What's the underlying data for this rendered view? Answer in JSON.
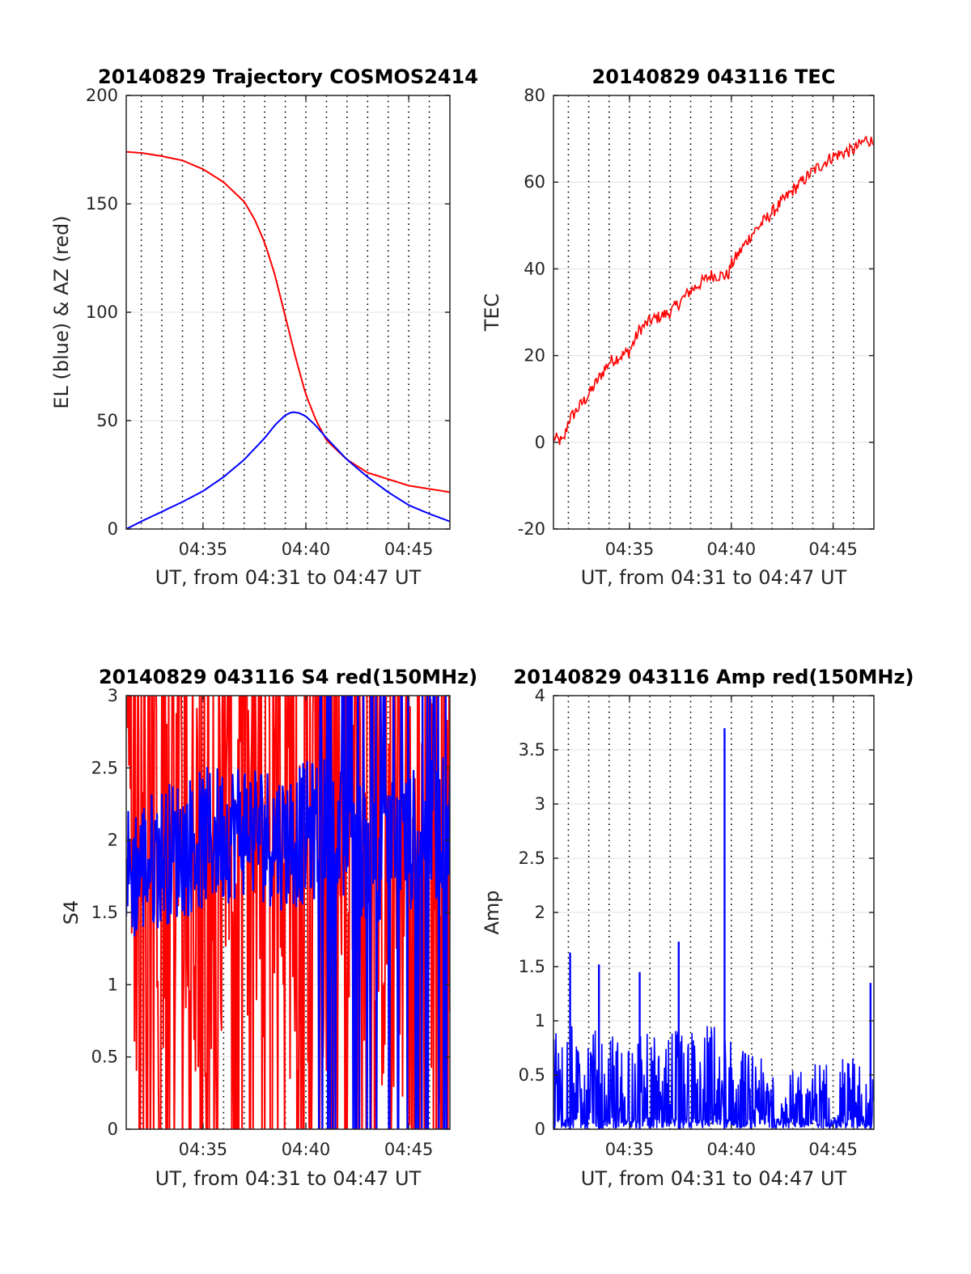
{
  "colors": {
    "el": "#0000ff",
    "az": "#ff0000",
    "axis": "#262626",
    "grid": "#e0e0e0",
    "vline": "#000000"
  },
  "chart_data": [
    {
      "type": "line",
      "title": "20140829 Trajectory COSMOS2414",
      "xlabel": "UT, from 04:31 to 04:47 UT",
      "ylabel": "EL (blue) & AZ (red)",
      "xlim": [
        "04:31:16",
        "04:47:00"
      ],
      "ylim": [
        0,
        200
      ],
      "xticks": [
        "04:35",
        "04:40",
        "04:45"
      ],
      "yticks": [
        0,
        50,
        100,
        150,
        200
      ],
      "grid": true,
      "series": [
        {
          "color": "#ff0000",
          "x": [
            "04:31:16",
            "04:32:00",
            "04:33:00",
            "04:34:00",
            "04:35:00",
            "04:36:00",
            "04:37:00",
            "04:37:30",
            "04:38:00",
            "04:38:30",
            "04:39:00",
            "04:39:30",
            "04:40:00",
            "04:40:30",
            "04:41:00",
            "04:42:00",
            "04:43:00",
            "04:44:00",
            "04:45:00",
            "04:46:00",
            "04:47:00"
          ],
          "y": [
            174,
            173.5,
            172,
            170,
            166,
            160,
            151,
            143,
            132,
            117,
            98,
            79,
            62,
            50,
            41,
            32,
            26,
            23,
            20,
            18.5,
            17
          ]
        },
        {
          "color": "#0000ff",
          "x": [
            "04:31:16",
            "04:32:00",
            "04:33:00",
            "04:34:00",
            "04:35:00",
            "04:36:00",
            "04:37:00",
            "04:38:00",
            "04:38:30",
            "04:39:00",
            "04:39:20",
            "04:39:40",
            "04:40:00",
            "04:40:30",
            "04:41:00",
            "04:42:00",
            "04:43:00",
            "04:44:00",
            "04:45:00",
            "04:46:00",
            "04:47:00"
          ],
          "y": [
            0,
            3.5,
            8,
            12.5,
            17.5,
            24,
            32,
            42,
            48,
            52.5,
            54,
            53.5,
            52,
            47.5,
            42,
            32,
            24,
            17,
            11,
            7,
            3.5
          ]
        }
      ]
    },
    {
      "type": "line",
      "title": "20140829 043116 TEC",
      "xlabel": "UT, from 04:31 to 04:47 UT",
      "ylabel": "TEC",
      "xlim": [
        "04:31:16",
        "04:47:00"
      ],
      "ylim": [
        -20,
        80
      ],
      "xticks": [
        "04:35",
        "04:40",
        "04:45"
      ],
      "yticks": [
        -20,
        0,
        20,
        40,
        60,
        80
      ],
      "grid": true,
      "noise": 1.5,
      "series": [
        {
          "color": "#ff0000",
          "x": [
            "04:31:16",
            "04:31:45",
            "04:32:00",
            "04:33:00",
            "04:34:00",
            "04:35:00",
            "04:35:30",
            "04:36:00",
            "04:37:00",
            "04:38:00",
            "04:39:00",
            "04:39:50",
            "04:40:00",
            "04:41:00",
            "04:42:00",
            "04:43:00",
            "04:44:00",
            "04:45:00",
            "04:46:00",
            "04:46:40",
            "04:47:00"
          ],
          "y": [
            1,
            0,
            5,
            11,
            18.5,
            21,
            26,
            28,
            30,
            35,
            38.5,
            38.5,
            41,
            48,
            53,
            58,
            62.5,
            66,
            67.5,
            70,
            69
          ]
        }
      ]
    },
    {
      "type": "line",
      "title": "20140829 043116 S4 red(150MHz)",
      "xlabel": "UT, from 04:31 to 04:47 UT",
      "ylabel": "S4",
      "xlim": [
        "04:31:16",
        "04:47:00"
      ],
      "ylim": [
        0,
        3
      ],
      "xticks": [
        "04:35",
        "04:40",
        "04:45"
      ],
      "yticks": [
        0,
        0.5,
        1,
        1.5,
        2,
        2.5,
        3
      ],
      "grid": true,
      "series": [
        {
          "color": "#ff0000",
          "style": "noise-band",
          "x": [
            "04:31:16",
            "04:33:00",
            "04:35:00",
            "04:37:00",
            "04:39:00",
            "04:41:00",
            "04:43:00",
            "04:45:00",
            "04:47:00"
          ],
          "y": [
            1.8,
            1.9,
            1.9,
            2.0,
            1.9,
            2.0,
            1.8,
            1.6,
            1.7
          ],
          "spread": 1.6
        },
        {
          "color": "#0000ff",
          "style": "noise-band",
          "x": [
            "04:31:16",
            "04:33:00",
            "04:35:00",
            "04:37:00",
            "04:39:00",
            "04:41:00",
            "04:43:00",
            "04:45:00",
            "04:47:00"
          ],
          "y": [
            1.75,
            1.9,
            2.0,
            2.1,
            2.0,
            2.1,
            1.9,
            2.0,
            2.1
          ],
          "spread": 0.5
        }
      ]
    },
    {
      "type": "line",
      "title": "20140829 043116 Amp red(150MHz)",
      "xlabel": "UT, from 04:31 to 04:47 UT",
      "ylabel": "Amp",
      "xlim": [
        "04:31:16",
        "04:47:00"
      ],
      "ylim": [
        0,
        4
      ],
      "xticks": [
        "04:35",
        "04:40",
        "04:45"
      ],
      "yticks": [
        0,
        0.5,
        1,
        1.5,
        2,
        2.5,
        3,
        3.5,
        4
      ],
      "grid": true,
      "series": [
        {
          "color": "#0000ff",
          "style": "spikes",
          "x": [
            "04:31:16",
            "04:34:00",
            "04:37:00",
            "04:39:30",
            "04:40:00",
            "04:42:00",
            "04:45:00",
            "04:47:00"
          ],
          "y": [
            1.0,
            0.9,
            0.9,
            1.0,
            0.8,
            0.6,
            0.65,
            0.7
          ],
          "peaks": [
            [
              "04:32:05",
              1.63
            ],
            [
              "04:33:30",
              1.52
            ],
            [
              "04:35:30",
              1.45
            ],
            [
              "04:37:25",
              1.73
            ],
            [
              "04:39:40",
              3.7
            ],
            [
              "04:46:50",
              1.35
            ]
          ]
        }
      ]
    }
  ]
}
